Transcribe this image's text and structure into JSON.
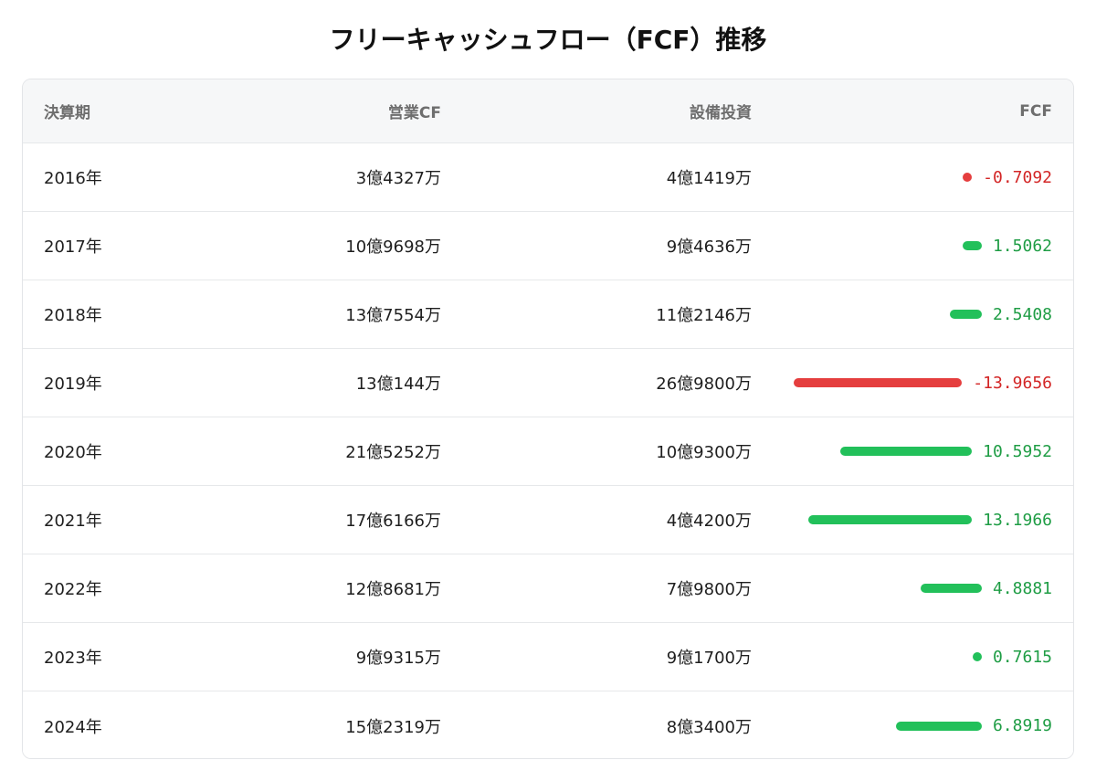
{
  "title": "フリーキャッシュフロー（FCF）推移",
  "table": {
    "headers": {
      "period": "決算期",
      "operating_cf": "営業CF",
      "capex": "設備投資",
      "fcf": "FCF"
    },
    "rows": [
      {
        "period": "2016年",
        "operating_cf": "3億4327万",
        "capex": "4億1419万",
        "fcf": "-0.7092"
      },
      {
        "period": "2017年",
        "operating_cf": "10億9698万",
        "capex": "9億4636万",
        "fcf": "1.5062"
      },
      {
        "period": "2018年",
        "operating_cf": "13億7554万",
        "capex": "11億2146万",
        "fcf": "2.5408"
      },
      {
        "period": "2019年",
        "operating_cf": "13億144万",
        "capex": "26億9800万",
        "fcf": "-13.9656"
      },
      {
        "period": "2020年",
        "operating_cf": "21億5252万",
        "capex": "10億9300万",
        "fcf": "10.5952"
      },
      {
        "period": "2021年",
        "operating_cf": "17億6166万",
        "capex": "4億4200万",
        "fcf": "13.1966"
      },
      {
        "period": "2022年",
        "operating_cf": "12億8681万",
        "capex": "7億9800万",
        "fcf": "4.8881"
      },
      {
        "period": "2023年",
        "operating_cf": "9億9315万",
        "capex": "9億1700万",
        "fcf": "0.7615"
      },
      {
        "period": "2024年",
        "operating_cf": "15億2319万",
        "capex": "8億3400万",
        "fcf": "6.8919"
      }
    ]
  },
  "colors": {
    "positive": "#22c05a",
    "negative": "#e53e3e",
    "positive_text": "#1f9d45",
    "negative_text": "#d32626"
  },
  "chart_data": {
    "type": "bar",
    "categories": [
      "2016年",
      "2017年",
      "2018年",
      "2019年",
      "2020年",
      "2021年",
      "2022年",
      "2023年",
      "2024年"
    ],
    "values": [
      -0.7092,
      1.5062,
      2.5408,
      -13.9656,
      10.5952,
      13.1966,
      4.8881,
      0.7615,
      6.8919
    ],
    "title": "フリーキャッシュフロー（FCF）推移",
    "xlabel": "",
    "ylabel": "FCF"
  }
}
